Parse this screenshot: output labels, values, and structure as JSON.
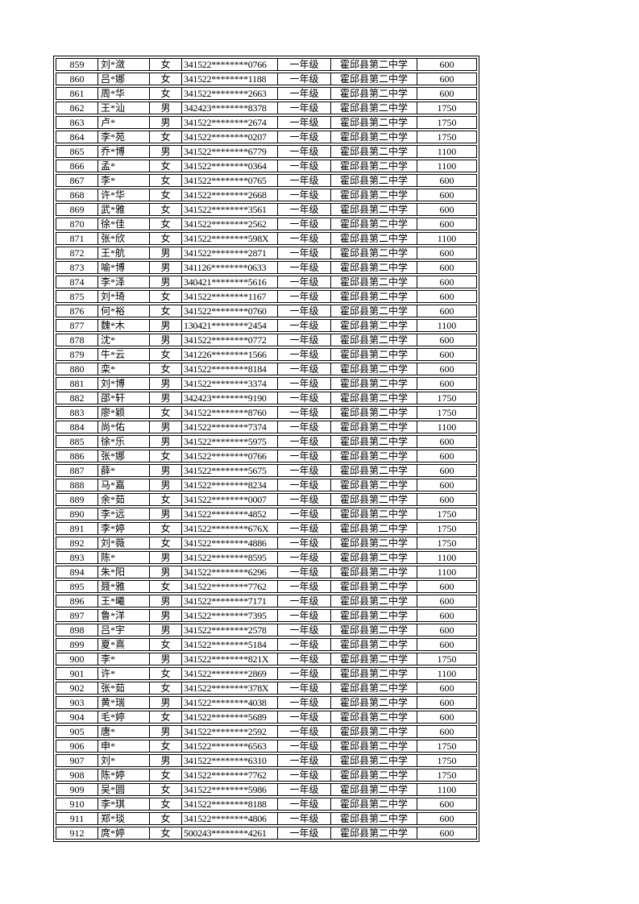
{
  "colors": {
    "background": "#ffffff",
    "border": "#000000",
    "text": "#000000"
  },
  "table": {
    "rows": [
      {
        "no": "859",
        "name": "刘*潋",
        "gender": "女",
        "id": "341522********0766",
        "grade": "一年级",
        "school": "霍邱县第二中学",
        "amount": "600"
      },
      {
        "no": "860",
        "name": "吕*娜",
        "gender": "女",
        "id": "341522********1188",
        "grade": "一年级",
        "school": "霍邱县第二中学",
        "amount": "600"
      },
      {
        "no": "861",
        "name": "周*华",
        "gender": "女",
        "id": "341522********2663",
        "grade": "一年级",
        "school": "霍邱县第二中学",
        "amount": "600"
      },
      {
        "no": "862",
        "name": "王*汕",
        "gender": "男",
        "id": "342423********8378",
        "grade": "一年级",
        "school": "霍邱县第二中学",
        "amount": "1750"
      },
      {
        "no": "863",
        "name": "卢*",
        "gender": "男",
        "id": "341522********2674",
        "grade": "一年级",
        "school": "霍邱县第二中学",
        "amount": "1750"
      },
      {
        "no": "864",
        "name": "李*苑",
        "gender": "女",
        "id": "341522********0207",
        "grade": "一年级",
        "school": "霍邱县第二中学",
        "amount": "1750"
      },
      {
        "no": "865",
        "name": "乔*博",
        "gender": "男",
        "id": "341522********6779",
        "grade": "一年级",
        "school": "霍邱县第二中学",
        "amount": "1100"
      },
      {
        "no": "866",
        "name": "孟*",
        "gender": "女",
        "id": "341522********0364",
        "grade": "一年级",
        "school": "霍邱县第二中学",
        "amount": "1100"
      },
      {
        "no": "867",
        "name": "李*",
        "gender": "女",
        "id": "341522********0765",
        "grade": "一年级",
        "school": "霍邱县第二中学",
        "amount": "600"
      },
      {
        "no": "868",
        "name": "许*华",
        "gender": "女",
        "id": "341522********2668",
        "grade": "一年级",
        "school": "霍邱县第二中学",
        "amount": "600"
      },
      {
        "no": "869",
        "name": "武*雅",
        "gender": "女",
        "id": "341522********3561",
        "grade": "一年级",
        "school": "霍邱县第二中学",
        "amount": "600"
      },
      {
        "no": "870",
        "name": "徐*佳",
        "gender": "女",
        "id": "341522********2562",
        "grade": "一年级",
        "school": "霍邱县第二中学",
        "amount": "600"
      },
      {
        "no": "871",
        "name": "张*欣",
        "gender": "女",
        "id": "341522********598X",
        "grade": "一年级",
        "school": "霍邱县第二中学",
        "amount": "1100"
      },
      {
        "no": "872",
        "name": "王*航",
        "gender": "男",
        "id": "341522********2871",
        "grade": "一年级",
        "school": "霍邱县第二中学",
        "amount": "600"
      },
      {
        "no": "873",
        "name": "喻*博",
        "gender": "男",
        "id": "341126********0633",
        "grade": "一年级",
        "school": "霍邱县第二中学",
        "amount": "600"
      },
      {
        "no": "874",
        "name": "李*泽",
        "gender": "男",
        "id": "340421********5616",
        "grade": "一年级",
        "school": "霍邱县第二中学",
        "amount": "600"
      },
      {
        "no": "875",
        "name": "刘*琦",
        "gender": "女",
        "id": "341522********1167",
        "grade": "一年级",
        "school": "霍邱县第二中学",
        "amount": "600"
      },
      {
        "no": "876",
        "name": "何*裕",
        "gender": "女",
        "id": "341522********0760",
        "grade": "一年级",
        "school": "霍邱县第二中学",
        "amount": "600"
      },
      {
        "no": "877",
        "name": "魏*木",
        "gender": "男",
        "id": "130421********2454",
        "grade": "一年级",
        "school": "霍邱县第二中学",
        "amount": "1100"
      },
      {
        "no": "878",
        "name": "沈*",
        "gender": "男",
        "id": "341522********0772",
        "grade": "一年级",
        "school": "霍邱县第二中学",
        "amount": "600"
      },
      {
        "no": "879",
        "name": "牛*云",
        "gender": "女",
        "id": "341226********1566",
        "grade": "一年级",
        "school": "霍邱县第二中学",
        "amount": "600"
      },
      {
        "no": "880",
        "name": "栾*",
        "gender": "女",
        "id": "341522********8184",
        "grade": "一年级",
        "school": "霍邱县第二中学",
        "amount": "600"
      },
      {
        "no": "881",
        "name": "刘*博",
        "gender": "男",
        "id": "341522********3374",
        "grade": "一年级",
        "school": "霍邱县第二中学",
        "amount": "600"
      },
      {
        "no": "882",
        "name": "邵*轩",
        "gender": "男",
        "id": "342423********9190",
        "grade": "一年级",
        "school": "霍邱县第二中学",
        "amount": "1750"
      },
      {
        "no": "883",
        "name": "廖*颖",
        "gender": "女",
        "id": "341522********8760",
        "grade": "一年级",
        "school": "霍邱县第二中学",
        "amount": "1750"
      },
      {
        "no": "884",
        "name": "尚*佑",
        "gender": "男",
        "id": "341522********7374",
        "grade": "一年级",
        "school": "霍邱县第二中学",
        "amount": "1100"
      },
      {
        "no": "885",
        "name": "徐*乐",
        "gender": "男",
        "id": "341522********5975",
        "grade": "一年级",
        "school": "霍邱县第二中学",
        "amount": "600"
      },
      {
        "no": "886",
        "name": "张*娜",
        "gender": "女",
        "id": "341522********0766",
        "grade": "一年级",
        "school": "霍邱县第二中学",
        "amount": "600"
      },
      {
        "no": "887",
        "name": "薛*",
        "gender": "男",
        "id": "341522********5675",
        "grade": "一年级",
        "school": "霍邱县第二中学",
        "amount": "600"
      },
      {
        "no": "888",
        "name": "马*嘉",
        "gender": "男",
        "id": "341522********8234",
        "grade": "一年级",
        "school": "霍邱县第二中学",
        "amount": "600"
      },
      {
        "no": "889",
        "name": "余*茹",
        "gender": "女",
        "id": "341522********0007",
        "grade": "一年级",
        "school": "霍邱县第二中学",
        "amount": "600"
      },
      {
        "no": "890",
        "name": "李*远",
        "gender": "男",
        "id": "341522********4852",
        "grade": "一年级",
        "school": "霍邱县第二中学",
        "amount": "1750"
      },
      {
        "no": "891",
        "name": "李*婷",
        "gender": "女",
        "id": "341522********676X",
        "grade": "一年级",
        "school": "霍邱县第二中学",
        "amount": "1750"
      },
      {
        "no": "892",
        "name": "刘*薇",
        "gender": "女",
        "id": "341522********4886",
        "grade": "一年级",
        "school": "霍邱县第二中学",
        "amount": "1750"
      },
      {
        "no": "893",
        "name": "陈*",
        "gender": "男",
        "id": "341522********8595",
        "grade": "一年级",
        "school": "霍邱县第二中学",
        "amount": "1100"
      },
      {
        "no": "894",
        "name": "朱*阳",
        "gender": "男",
        "id": "341522********6296",
        "grade": "一年级",
        "school": "霍邱县第二中学",
        "amount": "1100"
      },
      {
        "no": "895",
        "name": "聂*雅",
        "gender": "女",
        "id": "341522********7762",
        "grade": "一年级",
        "school": "霍邱县第二中学",
        "amount": "600"
      },
      {
        "no": "896",
        "name": "王*曦",
        "gender": "男",
        "id": "341522********7171",
        "grade": "一年级",
        "school": "霍邱县第二中学",
        "amount": "600"
      },
      {
        "no": "897",
        "name": "鲁*洋",
        "gender": "男",
        "id": "341522********7395",
        "grade": "一年级",
        "school": "霍邱县第二中学",
        "amount": "600"
      },
      {
        "no": "898",
        "name": "吕*宇",
        "gender": "男",
        "id": "341522********2578",
        "grade": "一年级",
        "school": "霍邱县第二中学",
        "amount": "600"
      },
      {
        "no": "899",
        "name": "夏*熹",
        "gender": "女",
        "id": "341522********5184",
        "grade": "一年级",
        "school": "霍邱县第二中学",
        "amount": "600"
      },
      {
        "no": "900",
        "name": "李*",
        "gender": "男",
        "id": "341522********821X",
        "grade": "一年级",
        "school": "霍邱县第二中学",
        "amount": "1750"
      },
      {
        "no": "901",
        "name": "许*",
        "gender": "女",
        "id": "341522********2869",
        "grade": "一年级",
        "school": "霍邱县第二中学",
        "amount": "1100"
      },
      {
        "no": "902",
        "name": "张*茹",
        "gender": "女",
        "id": "341522********378X",
        "grade": "一年级",
        "school": "霍邱县第二中学",
        "amount": "600"
      },
      {
        "no": "903",
        "name": "黄*瑞",
        "gender": "男",
        "id": "341522********4038",
        "grade": "一年级",
        "school": "霍邱县第二中学",
        "amount": "600"
      },
      {
        "no": "904",
        "name": "毛*婷",
        "gender": "女",
        "id": "341522********5689",
        "grade": "一年级",
        "school": "霍邱县第二中学",
        "amount": "600"
      },
      {
        "no": "905",
        "name": "唐*",
        "gender": "男",
        "id": "341522********2592",
        "grade": "一年级",
        "school": "霍邱县第二中学",
        "amount": "600"
      },
      {
        "no": "906",
        "name": "申*",
        "gender": "女",
        "id": "341522********6563",
        "grade": "一年级",
        "school": "霍邱县第二中学",
        "amount": "1750"
      },
      {
        "no": "907",
        "name": "刘*",
        "gender": "男",
        "id": "341522********6310",
        "grade": "一年级",
        "school": "霍邱县第二中学",
        "amount": "1750"
      },
      {
        "no": "908",
        "name": "陈*婷",
        "gender": "女",
        "id": "341522********7762",
        "grade": "一年级",
        "school": "霍邱县第二中学",
        "amount": "1750"
      },
      {
        "no": "909",
        "name": "吴*圆",
        "gender": "女",
        "id": "341522********5986",
        "grade": "一年级",
        "school": "霍邱县第二中学",
        "amount": "1100"
      },
      {
        "no": "910",
        "name": "李*琪",
        "gender": "女",
        "id": "341522********8188",
        "grade": "一年级",
        "school": "霍邱县第二中学",
        "amount": "600"
      },
      {
        "no": "911",
        "name": "郑*琰",
        "gender": "女",
        "id": "341522********4806",
        "grade": "一年级",
        "school": "霍邱县第二中学",
        "amount": "600"
      },
      {
        "no": "912",
        "name": "庹*婷",
        "gender": "女",
        "id": "500243********4261",
        "grade": "一年级",
        "school": "霍邱县第二中学",
        "amount": "600"
      }
    ]
  }
}
